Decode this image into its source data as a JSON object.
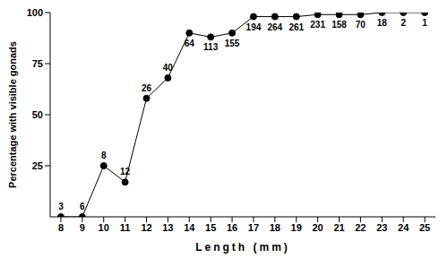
{
  "chart_data": {
    "type": "line",
    "x_label": "Length (mm)",
    "y_label": "Percentage with visible gonads",
    "x": [
      8,
      9,
      10,
      11,
      12,
      13,
      14,
      15,
      16,
      17,
      18,
      19,
      20,
      21,
      22,
      23,
      24,
      25
    ],
    "values": [
      0,
      0,
      25,
      17,
      58,
      68,
      90,
      88,
      90,
      98,
      98,
      98,
      99,
      99,
      99,
      100,
      100,
      100
    ],
    "sample_sizes": [
      3,
      6,
      8,
      12,
      26,
      40,
      64,
      113,
      155,
      194,
      264,
      261,
      231,
      158,
      70,
      18,
      2,
      1
    ],
    "xlim": [
      7.5,
      25.5
    ],
    "xticks": [
      8,
      9,
      10,
      11,
      12,
      13,
      14,
      15,
      16,
      17,
      18,
      19,
      20,
      21,
      22,
      23,
      24,
      25
    ],
    "ylim": [
      0,
      100
    ],
    "yticks": [
      25,
      50,
      75,
      100
    ],
    "color": "#000000",
    "marker": "circle",
    "grid": false
  }
}
